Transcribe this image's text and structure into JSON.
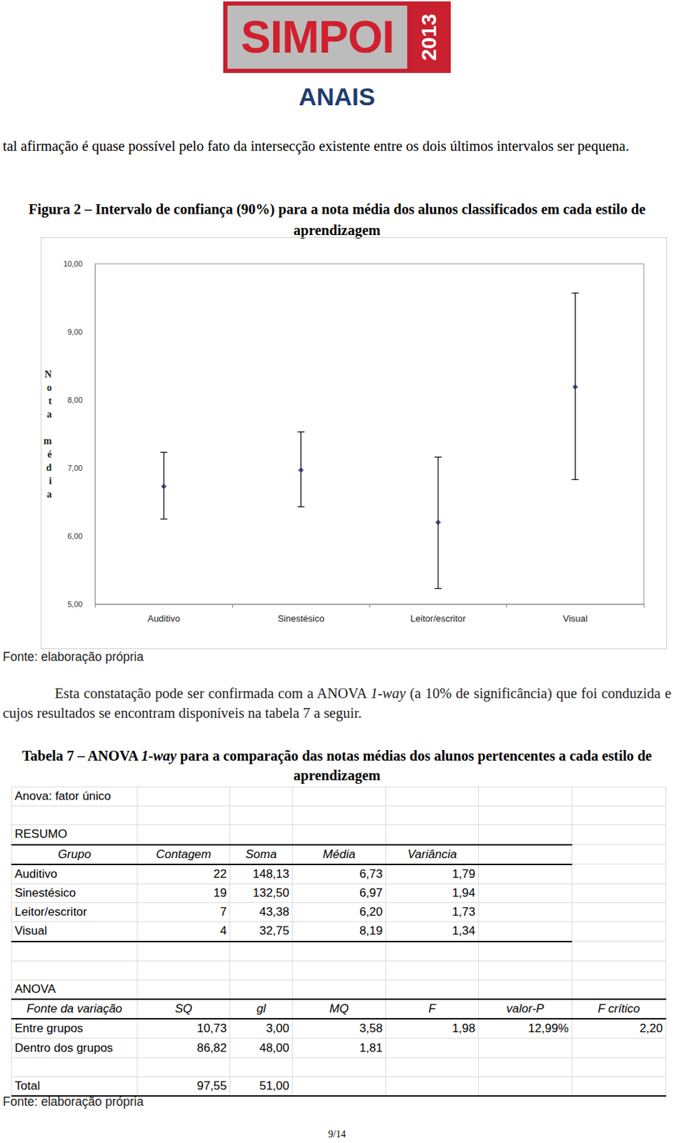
{
  "header": {
    "logo": "SIMPOI",
    "logo_year": "2013",
    "title": "ANAIS"
  },
  "text_before": "tal afirmação é quase possível pelo fato da intersecção existente entre os dois últimos intervalos ser pequena.",
  "figure": {
    "caption": "Figura 2 – Intervalo de confiança (90%) para a nota média dos alunos classificados em cada estilo de aprendizagem",
    "source": "Fonte: elaboração própria"
  },
  "chart_data": {
    "type": "scatter",
    "y_label": "Nota média",
    "categories": [
      "Auditivo",
      "Sinestésico",
      "Leitor/escritor",
      "Visual"
    ],
    "values": [
      6.73,
      6.97,
      6.2,
      8.19
    ],
    "lower": [
      6.25,
      6.43,
      5.23,
      6.83
    ],
    "upper": [
      7.23,
      7.53,
      7.16,
      9.57
    ],
    "color": "#1f2a6b",
    "marker": "diamond",
    "ylim": [
      5,
      10
    ],
    "yticks": [
      {
        "value": 5,
        "label": "5,00"
      },
      {
        "value": 6,
        "label": "6,00"
      },
      {
        "value": 7,
        "label": "7,00"
      },
      {
        "value": 8,
        "label": "8,00"
      },
      {
        "value": 9,
        "label": "9,00"
      },
      {
        "value": 10,
        "label": "10,00"
      }
    ],
    "grid": false
  },
  "text_after": [
    {
      "text": "Esta constatação pode ser confirmada com a ANOVA "
    },
    {
      "text": "1-way",
      "italic": true
    },
    {
      "text": " (a 10% de significância) que foi conduzida e cujos resultados se encontram disponíveis na tabela 7 a seguir."
    }
  ],
  "table_caption": [
    {
      "text": "Tabela 7 – ANOVA "
    },
    {
      "text": "1-way",
      "italic": true
    },
    {
      "text": " para a comparação das notas médias dos alunos pertencentes a cada estilo de aprendizagem"
    }
  ],
  "table": {
    "title": "Anova: fator único",
    "summary": {
      "title": "RESUMO",
      "header": [
        "Grupo",
        "Contagem",
        "Soma",
        "Média",
        "Variância"
      ],
      "rows": [
        [
          "Auditivo",
          "22",
          "148,13",
          "6,73",
          "1,79"
        ],
        [
          "Sinestésico",
          "19",
          "132,50",
          "6,97",
          "1,94"
        ],
        [
          "Leitor/escritor",
          "7",
          "43,38",
          "6,20",
          "1,73"
        ],
        [
          "Visual",
          "4",
          "32,75",
          "8,19",
          "1,34"
        ]
      ]
    },
    "anova": {
      "title": "ANOVA",
      "header": [
        "Fonte da variação",
        "SQ",
        "gl",
        "MQ",
        "F",
        "valor-P",
        "F crítico"
      ],
      "rows": [
        [
          "Entre grupos",
          "10,73",
          "3,00",
          "3,58",
          "1,98",
          "12,99%",
          "2,20"
        ],
        [
          "Dentro dos grupos",
          "86,82",
          "48,00",
          "1,81"
        ]
      ],
      "total": [
        "Total",
        "97,55",
        "51,00"
      ]
    },
    "source": "Fonte: elaboração própria"
  },
  "page_number": "9/14"
}
